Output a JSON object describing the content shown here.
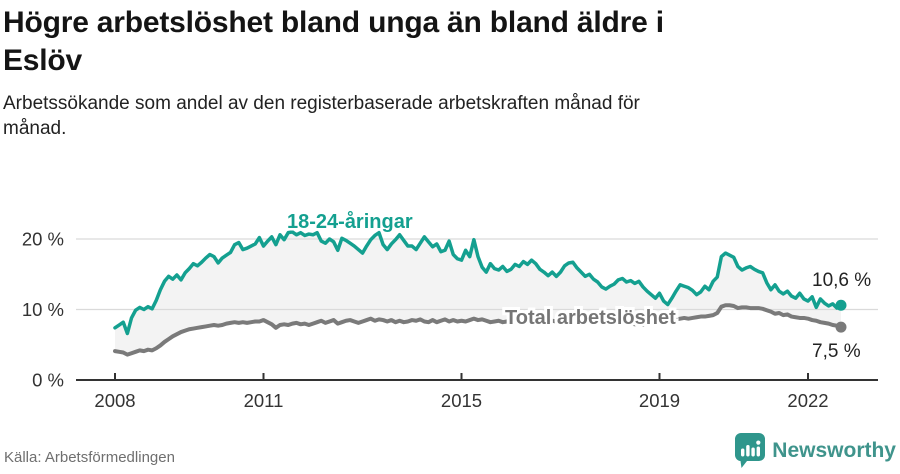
{
  "header": {
    "title": "Högre arbetslöshet bland unga än bland äldre i\nEslöv",
    "subtitle": "Arbetssökande som andel av den registerbaserade arbetskraften månad för\nmånad."
  },
  "footer": {
    "source": "Källa: Arbetsförmedlingen",
    "brand": "Newsworthy"
  },
  "chart_data": {
    "type": "line",
    "title": "Högre arbetslöshet bland unga än bland äldre i Eslöv",
    "subtitle": "Arbetssökande som andel av den registerbaserade arbetskraften månad för månad",
    "x_unit": "month",
    "x_start": "2008-01",
    "x_end": "2022-09",
    "x_tick_years": [
      2008,
      2011,
      2015,
      2019,
      2022
    ],
    "y_ticks": [
      {
        "value": 0,
        "label": "0 %"
      },
      {
        "value": 10,
        "label": "10 %"
      },
      {
        "value": 20,
        "label": "20 %"
      }
    ],
    "ylim": [
      0,
      23
    ],
    "grid": true,
    "legend": "inline-labels",
    "band_fill_between_series": true,
    "colors": {
      "youth": "#14a090",
      "total": "#7a7a7a",
      "band": "#f3f3f3",
      "grid": "#dadada",
      "axis": "#333333",
      "tick_text": "#333333",
      "value_label": "#222222",
      "total_label": "#757575"
    },
    "series": [
      {
        "id": "youth",
        "name": "18-24-åringar",
        "color": "#14a090",
        "end_label": "10,6 %",
        "last_value": 10.6,
        "values": [
          7.4,
          7.8,
          8.2,
          6.6,
          8.8,
          9.9,
          10.3,
          10.0,
          10.4,
          10.1,
          11.3,
          12.8,
          14.0,
          14.7,
          14.3,
          14.9,
          14.2,
          15.2,
          15.8,
          16.5,
          16.2,
          16.7,
          17.3,
          17.8,
          17.5,
          16.6,
          17.3,
          17.7,
          18.1,
          19.2,
          19.5,
          18.5,
          18.7,
          19.0,
          19.3,
          20.2,
          19.0,
          19.7,
          20.3,
          19.2,
          20.6,
          19.9,
          20.9,
          21.0,
          20.6,
          20.9,
          20.5,
          20.7,
          20.6,
          20.9,
          19.7,
          19.4,
          20.0,
          19.6,
          18.4,
          20.1,
          19.8,
          19.4,
          19.0,
          18.5,
          18.0,
          19.0,
          19.9,
          20.5,
          20.9,
          19.2,
          18.5,
          19.3,
          19.9,
          20.6,
          19.8,
          19.0,
          19.0,
          18.5,
          19.4,
          20.3,
          19.6,
          18.9,
          19.3,
          18.2,
          18.4,
          19.7,
          17.8,
          17.2,
          17.0,
          18.4,
          17.5,
          19.9,
          17.5,
          16.0,
          15.3,
          16.5,
          15.8,
          15.6,
          16.1,
          15.4,
          15.7,
          16.4,
          16.1,
          16.8,
          16.4,
          17.0,
          16.5,
          15.7,
          15.3,
          14.8,
          15.3,
          14.7,
          15.3,
          16.2,
          16.6,
          16.7,
          15.9,
          15.3,
          14.7,
          15.0,
          14.3,
          13.9,
          13.2,
          12.9,
          13.3,
          13.6,
          14.2,
          14.4,
          13.9,
          14.1,
          13.7,
          14.0,
          13.2,
          12.6,
          12.1,
          11.6,
          12.3,
          11.2,
          10.7,
          11.6,
          12.6,
          13.5,
          13.3,
          13.1,
          12.7,
          12.1,
          12.5,
          13.3,
          12.8,
          14.0,
          14.6,
          17.5,
          18.0,
          17.7,
          17.4,
          16.1,
          15.6,
          15.9,
          16.1,
          15.7,
          15.4,
          15.2,
          13.8,
          12.8,
          13.5,
          12.6,
          12.2,
          12.6,
          11.9,
          11.6,
          12.3,
          11.5,
          11.2,
          11.8,
          10.3,
          11.5,
          10.9,
          10.5,
          10.8,
          10.2,
          10.6
        ]
      },
      {
        "id": "total",
        "name": "Total arbetslöshet",
        "color": "#7a7a7a",
        "end_label": "7,5 %",
        "last_value": 7.5,
        "values": [
          4.1,
          4.0,
          3.9,
          3.6,
          3.8,
          4.0,
          4.2,
          4.1,
          4.3,
          4.2,
          4.5,
          4.9,
          5.4,
          5.8,
          6.2,
          6.5,
          6.8,
          7.0,
          7.2,
          7.3,
          7.4,
          7.5,
          7.6,
          7.7,
          7.8,
          7.7,
          7.8,
          8.0,
          8.1,
          8.2,
          8.1,
          8.2,
          8.1,
          8.2,
          8.3,
          8.3,
          8.5,
          8.2,
          7.9,
          7.4,
          7.8,
          7.9,
          7.8,
          8.0,
          8.1,
          7.9,
          8.0,
          7.8,
          8.0,
          8.2,
          8.4,
          8.1,
          8.3,
          8.5,
          8.0,
          8.2,
          8.4,
          8.5,
          8.3,
          8.1,
          8.3,
          8.5,
          8.7,
          8.4,
          8.6,
          8.5,
          8.3,
          8.5,
          8.2,
          8.4,
          8.2,
          8.3,
          8.5,
          8.4,
          8.6,
          8.3,
          8.2,
          8.5,
          8.2,
          8.4,
          8.6,
          8.3,
          8.5,
          8.3,
          8.4,
          8.3,
          8.5,
          8.7,
          8.5,
          8.6,
          8.4,
          8.2,
          8.3,
          8.4,
          8.2,
          8.3,
          8.4,
          8.2,
          8.3,
          8.5,
          8.3,
          8.4,
          8.2,
          8.1,
          8.3,
          8.2,
          8.4,
          8.3,
          8.5,
          8.6,
          8.4,
          8.5,
          8.3,
          8.4,
          8.2,
          8.3,
          8.1,
          8.2,
          8.0,
          8.1,
          8.2,
          8.3,
          8.1,
          8.2,
          8.0,
          8.1,
          7.9,
          8.0,
          7.8,
          7.9,
          8.0,
          8.1,
          8.3,
          8.2,
          8.4,
          8.5,
          8.6,
          8.7,
          8.8,
          8.7,
          8.8,
          8.9,
          9.0,
          9.0,
          9.1,
          9.2,
          9.5,
          10.4,
          10.6,
          10.6,
          10.5,
          10.2,
          10.3,
          10.3,
          10.2,
          10.2,
          10.2,
          10.1,
          9.9,
          9.7,
          9.4,
          9.5,
          9.2,
          9.3,
          9.0,
          8.9,
          8.8,
          8.8,
          8.7,
          8.5,
          8.4,
          8.2,
          8.1,
          8.0,
          7.8,
          7.7,
          7.5
        ]
      }
    ]
  }
}
